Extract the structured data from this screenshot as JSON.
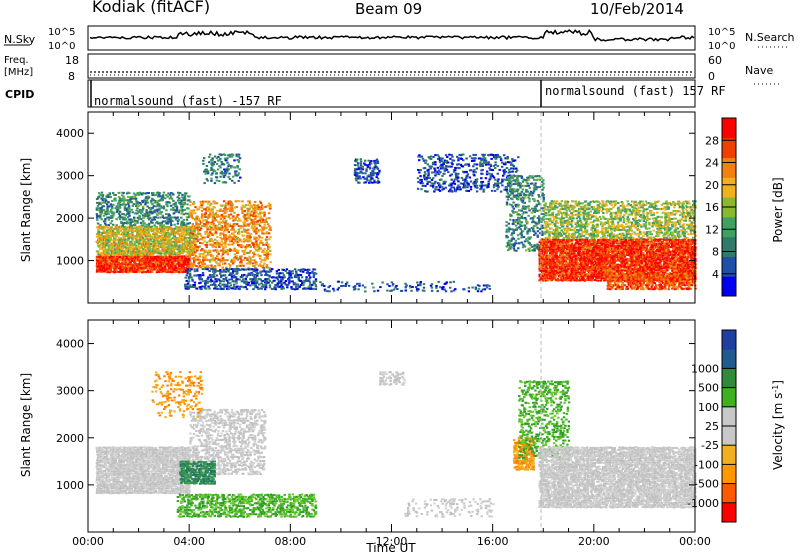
{
  "header": {
    "station": "Kodiak (fitACF)",
    "beam": "Beam 09",
    "date": "10/Feb/2014"
  },
  "summary": {
    "nsky_label": "N.Sky",
    "nsearch_label": "N.Search",
    "nsky_ticks": [
      "10^5",
      "10^0"
    ],
    "nsearch_ticks": [
      "10^5",
      "10^0"
    ],
    "freq_label": "Freq.",
    "freq_unit": "[MHz]",
    "freq_ticks": [
      "18",
      "8"
    ],
    "nave_label": "Nave",
    "nave_ticks": [
      "60",
      "0"
    ],
    "cpid_label": "CPID",
    "cpid_segments": [
      "normalsound (fast) -157 RF",
      "normalsound (fast) 157 RF"
    ]
  },
  "colors": {
    "power": [
      "#0000ee",
      "#1f4fa8",
      "#2f7a6a",
      "#3fa060",
      "#8ab830",
      "#f0b020",
      "#f08010",
      "#f04000",
      "#ff0000"
    ],
    "velocity": [
      "#ff0000",
      "#ff5a00",
      "#ff9800",
      "#f0b020",
      "#c8c8c8",
      "#c8c8c8",
      "#3fb020",
      "#2f8a3a",
      "#1f5a90",
      "#1f3fa0"
    ]
  },
  "chart_data": [
    {
      "type": "heatmap",
      "title": "Power",
      "xlabel": "",
      "ylabel": "Slant Range [km]",
      "xlim": [
        "00:00",
        "24:00"
      ],
      "ylim": [
        0,
        4500
      ],
      "x_ticks": [],
      "y_ticks": [
        "1000",
        "2000",
        "3000",
        "4000"
      ],
      "colorbar_label": "Power [dB]",
      "colorbar_ticks": [
        "4",
        "8",
        "12",
        "16",
        "20",
        "24",
        "28"
      ],
      "colorbar_range": [
        0,
        32
      ],
      "scatter_regions": [
        {
          "t0": 0.3,
          "t1": 4.0,
          "r0": 700,
          "r1": 1100,
          "p": 28,
          "d": 0.85
        },
        {
          "t0": 0.3,
          "t1": 4.2,
          "r0": 1100,
          "r1": 1800,
          "p": 18,
          "d": 0.7
        },
        {
          "t0": 0.3,
          "t1": 4.0,
          "r0": 1800,
          "r1": 2600,
          "p": 10,
          "d": 0.35
        },
        {
          "t0": 4.0,
          "t1": 7.2,
          "r0": 800,
          "r1": 2400,
          "p": 22,
          "d": 0.35
        },
        {
          "t0": 3.8,
          "t1": 9.0,
          "r0": 300,
          "r1": 800,
          "p": 6,
          "d": 0.35
        },
        {
          "t0": 4.5,
          "t1": 6.0,
          "r0": 2800,
          "r1": 3500,
          "p": 8,
          "d": 0.25
        },
        {
          "t0": 9.0,
          "t1": 16.0,
          "r0": 250,
          "r1": 500,
          "p": 6,
          "d": 0.12
        },
        {
          "t0": 10.5,
          "t1": 11.5,
          "r0": 2800,
          "r1": 3400,
          "p": 5,
          "d": 0.35
        },
        {
          "t0": 13.0,
          "t1": 17.0,
          "r0": 2600,
          "r1": 3500,
          "p": 5,
          "d": 0.25
        },
        {
          "t0": 16.5,
          "t1": 18.0,
          "r0": 1200,
          "r1": 3000,
          "p": 10,
          "d": 0.3
        },
        {
          "t0": 17.8,
          "t1": 24.0,
          "r0": 500,
          "r1": 1500,
          "p": 28,
          "d": 0.8
        },
        {
          "t0": 18.0,
          "t1": 24.0,
          "r0": 1500,
          "r1": 2400,
          "p": 16,
          "d": 0.4
        },
        {
          "t0": 20.5,
          "t1": 24.0,
          "r0": 300,
          "r1": 700,
          "p": 26,
          "d": 0.6
        }
      ]
    },
    {
      "type": "heatmap",
      "title": "Velocity",
      "xlabel": "Time UT",
      "ylabel": "Slant Range [km]",
      "xlim": [
        "00:00",
        "24:00"
      ],
      "ylim": [
        0,
        4500
      ],
      "x_ticks": [
        "00:00",
        "04:00",
        "08:00",
        "12:00",
        "16:00",
        "20:00",
        "00:00"
      ],
      "y_ticks": [
        "1000",
        "2000",
        "3000",
        "4000"
      ],
      "colorbar_label": "Velocity [m s^-1]",
      "colorbar_ticks": [
        "-1000",
        "-500",
        "-100",
        "-25",
        "25",
        "100",
        "500",
        "1000"
      ],
      "scatter_regions": [
        {
          "t0": 0.3,
          "t1": 4.0,
          "r0": 800,
          "r1": 1800,
          "v": "gray",
          "d": 0.85
        },
        {
          "t0": 4.0,
          "t1": 7.0,
          "r0": 1200,
          "r1": 2600,
          "v": "gray",
          "d": 0.4
        },
        {
          "t0": 3.6,
          "t1": 5.0,
          "r0": 1000,
          "r1": 1500,
          "v": "darkgreen",
          "d": 0.7
        },
        {
          "t0": 3.5,
          "t1": 9.0,
          "r0": 300,
          "r1": 800,
          "v": "green",
          "d": 0.45
        },
        {
          "t0": 2.5,
          "t1": 4.5,
          "r0": 2400,
          "r1": 3400,
          "v": "orange",
          "d": 0.2
        },
        {
          "t0": 16.8,
          "t1": 17.6,
          "r0": 1300,
          "r1": 2000,
          "v": "orange",
          "d": 0.6
        },
        {
          "t0": 17.0,
          "t1": 19.0,
          "r0": 1500,
          "r1": 3200,
          "v": "green",
          "d": 0.3
        },
        {
          "t0": 17.8,
          "t1": 24.0,
          "r0": 500,
          "r1": 1800,
          "v": "gray",
          "d": 0.75
        },
        {
          "t0": 12.5,
          "t1": 16.0,
          "r0": 300,
          "r1": 700,
          "v": "gray",
          "d": 0.15
        },
        {
          "t0": 11.5,
          "t1": 12.5,
          "r0": 3100,
          "r1": 3400,
          "v": "gray",
          "d": 0.35
        }
      ]
    }
  ]
}
